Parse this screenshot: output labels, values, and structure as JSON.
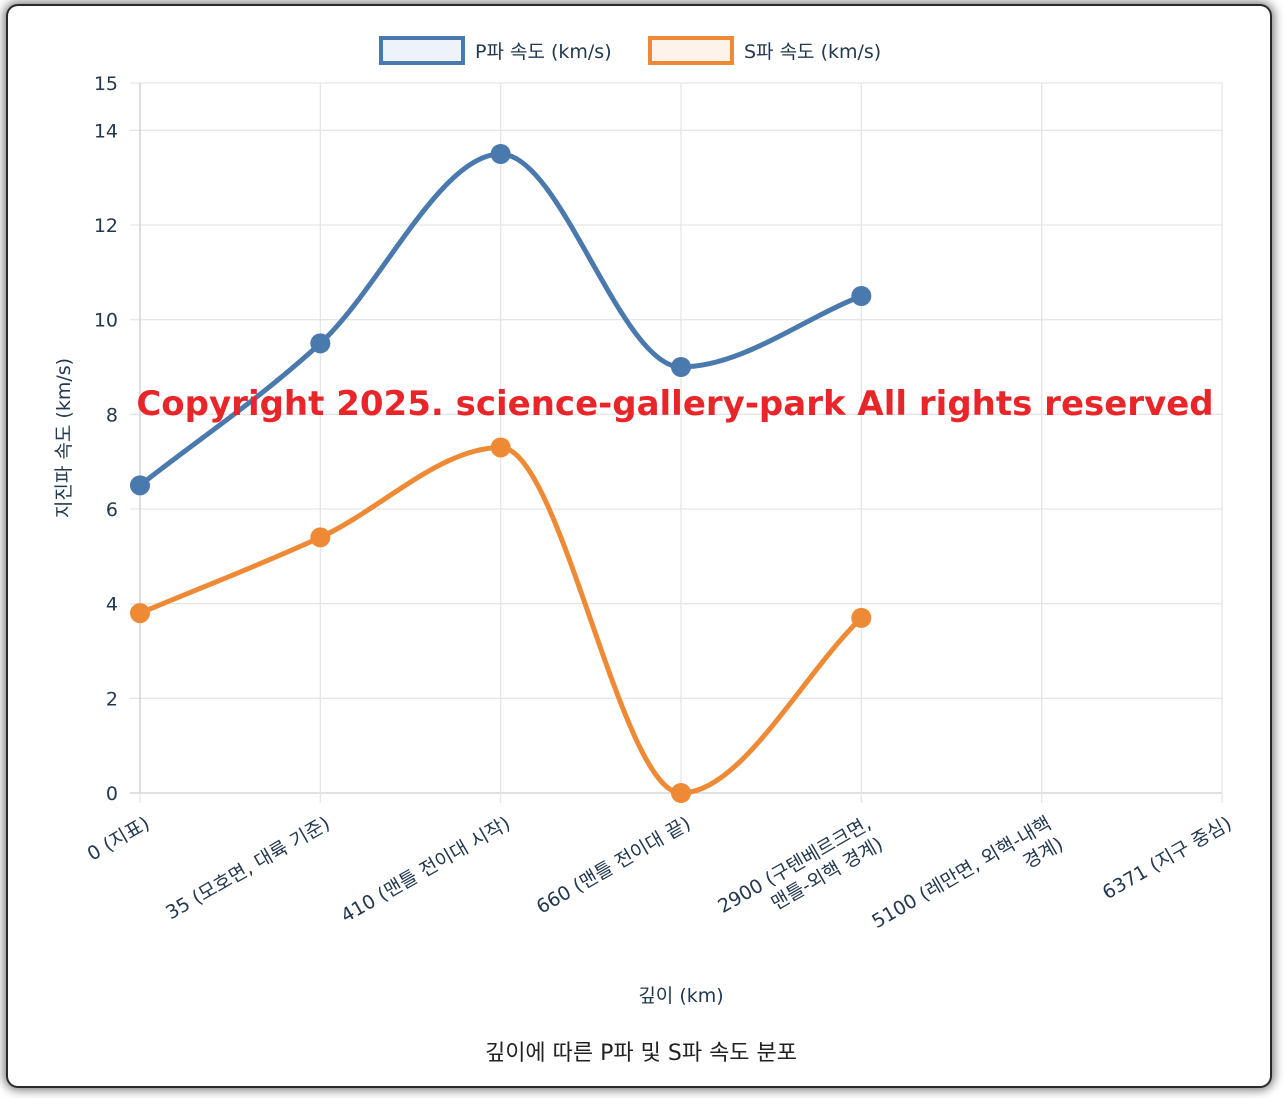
{
  "chart_data": {
    "type": "line",
    "caption": "깊이에 따른 P파 및 S파 속도 분포",
    "xlabel": "깊이 (km)",
    "ylabel": "지진파 속도 (km/s)",
    "ylim": [
      0,
      15
    ],
    "y_ticks": [
      "0",
      "2",
      "4",
      "6",
      "8",
      "10",
      "12",
      "14",
      "15"
    ],
    "grid": true,
    "legend_position": "top",
    "categories": [
      [
        "0 (지표)"
      ],
      [
        "35 (모호면, 대륙 기준)"
      ],
      [
        "410 (맨틀 전이대 시작)"
      ],
      [
        "660 (맨틀 전이대 끝)"
      ],
      [
        "2900 (구텐베르크면,",
        "맨틀-외핵 경계)"
      ],
      [
        "5100 (레만면, 외핵-내핵",
        "경계)"
      ],
      [
        "6371 (지구 중심)"
      ]
    ],
    "series": [
      {
        "name": "P파 속도 (km/s)",
        "color": "#4a79ad",
        "fill": "#eef3fa",
        "values": [
          6.5,
          9.5,
          13.5,
          9.0,
          10.5,
          null,
          null
        ]
      },
      {
        "name": "S파 속도 (km/s)",
        "color": "#ee8a35",
        "fill": "#fdf3ea",
        "values": [
          3.8,
          5.4,
          7.3,
          0,
          3.7,
          null,
          null
        ]
      }
    ]
  },
  "watermark": "Copyright 2025. science-gallery-park All rights reserved"
}
